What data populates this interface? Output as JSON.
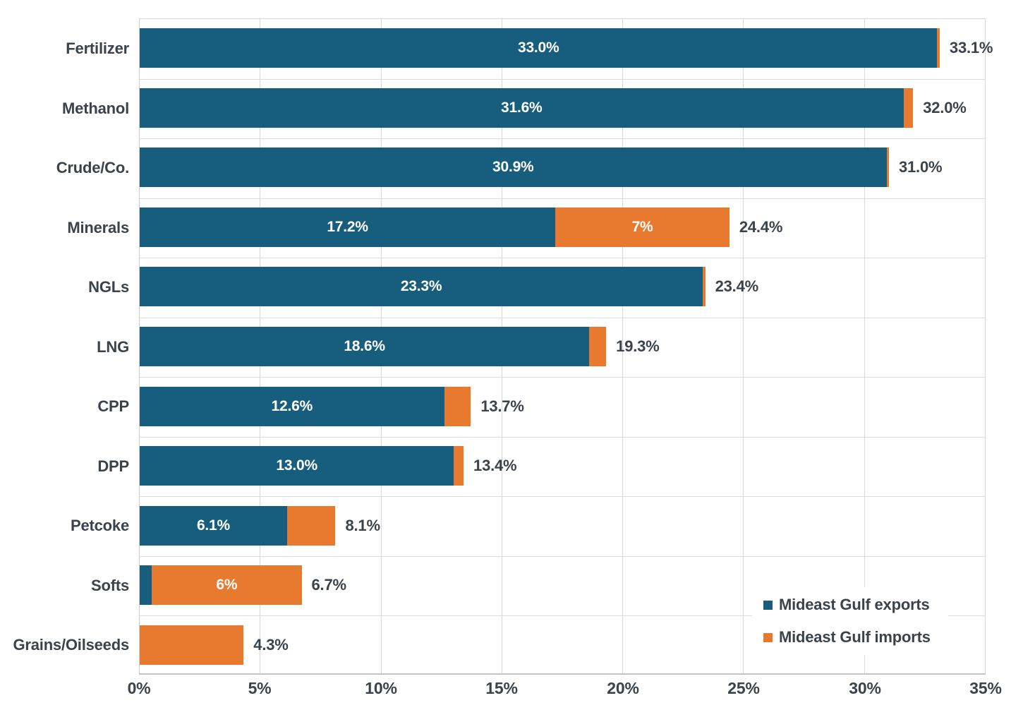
{
  "colors": {
    "exports": "#175d7d",
    "imports": "#e87a30",
    "text": "#3a434b",
    "grid": "#d7d7d7",
    "background": "#ffffff"
  },
  "chart_data": {
    "type": "bar",
    "orientation": "horizontal",
    "stacked": true,
    "title": "",
    "xlabel": "",
    "ylabel": "",
    "xlim": [
      0,
      35
    ],
    "x_ticks": [
      "0%",
      "5%",
      "10%",
      "15%",
      "20%",
      "25%",
      "30%",
      "35%"
    ],
    "grid": true,
    "categories": [
      "Fertilizer",
      "Methanol",
      "Crude/Co.",
      "Minerals",
      "NGLs",
      "LNG",
      "CPP",
      "DPP",
      "Petcoke",
      "Softs",
      "Grains/Oilseeds"
    ],
    "series": [
      {
        "name": "Mideast Gulf exports",
        "color": "#175d7d",
        "values": [
          33.0,
          31.6,
          30.9,
          17.2,
          23.3,
          18.6,
          12.6,
          13.0,
          6.1,
          0.5,
          0
        ]
      },
      {
        "name": "Mideast Gulf imports",
        "color": "#e87a30",
        "values": [
          0.1,
          0.4,
          0.1,
          7.2,
          0.1,
          0.7,
          1.1,
          0.4,
          2.0,
          6.2,
          4.3
        ]
      }
    ],
    "totals": [
      33.1,
      32.0,
      31.0,
      24.4,
      23.4,
      19.3,
      13.7,
      13.4,
      8.1,
      6.7,
      4.3
    ],
    "labels": {
      "exports_segment": [
        "33.0%",
        "31.6%",
        "30.9%",
        "17.2%",
        "23.3%",
        "18.6%",
        "12.6%",
        "13.0%",
        "6.1%",
        "",
        ""
      ],
      "imports_segment": [
        "",
        "",
        "",
        "7%",
        "",
        "",
        "",
        "",
        "",
        "6%",
        ""
      ],
      "totals": [
        "33.1%",
        "32.0%",
        "31.0%",
        "24.4%",
        "23.4%",
        "19.3%",
        "13.7%",
        "13.4%",
        "8.1%",
        "6.7%",
        "4.3%"
      ]
    },
    "legend": {
      "position": "bottom-right",
      "entries": [
        {
          "label": "Mideast Gulf exports",
          "color": "#175d7d"
        },
        {
          "label": "Mideast Gulf imports",
          "color": "#e87a30"
        }
      ]
    }
  }
}
